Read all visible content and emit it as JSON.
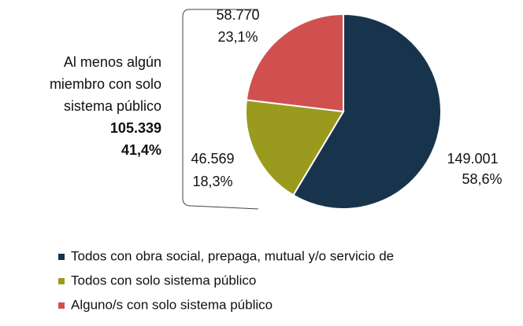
{
  "chart_data": {
    "type": "pie",
    "categories": [
      "Todos con obra social, prepaga, mutual y/o servicio de",
      "Todos con solo sistema público",
      "Alguno/s con solo sistema público"
    ],
    "values": [
      149001,
      46569,
      58770
    ],
    "value_labels": [
      "149.001",
      "46.569",
      "58.770"
    ],
    "percents": [
      58.6,
      18.3,
      23.1
    ],
    "percent_labels": [
      "58,6%",
      "18,3%",
      "23,1%"
    ],
    "colors": [
      "#17344c",
      "#9a9a1e",
      "#d05050"
    ],
    "annotation": {
      "lines": [
        "Al menos algún",
        "miembro con solo",
        "sistema público"
      ],
      "value": 105339,
      "value_label": "105.339",
      "percent": 41.4,
      "percent_label": "41,4%"
    }
  }
}
